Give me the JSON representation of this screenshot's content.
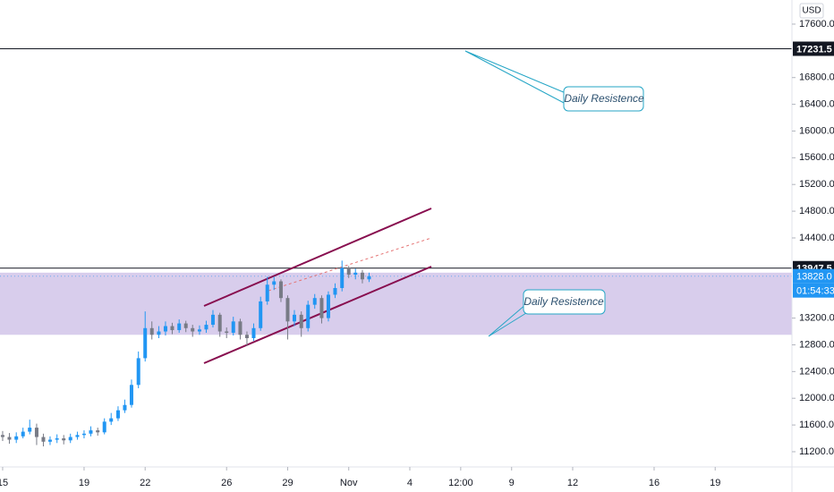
{
  "chart_data": {
    "type": "candlestick",
    "currency": "USD",
    "x": [
      0,
      0.33,
      0.67,
      1,
      1.33,
      1.67,
      2,
      2.33,
      2.67,
      3,
      3.33,
      3.67,
      4,
      4.33,
      4.67,
      5,
      5.33,
      5.67,
      6,
      6.33,
      6.67,
      7,
      7.33,
      7.67,
      8,
      8.33,
      8.67,
      9,
      9.33,
      9.67,
      10,
      10.33,
      10.67,
      11,
      11.33,
      11.67,
      12,
      12.33,
      12.67,
      13,
      13.33,
      13.67,
      14,
      14.33,
      14.67,
      15,
      15.33,
      15.67,
      16,
      16.33,
      16.67,
      17,
      17.33,
      17.67,
      18
    ],
    "open": [
      11450,
      11420,
      11380,
      11430,
      11500,
      11560,
      11420,
      11350,
      11380,
      11400,
      11370,
      11420,
      11450,
      11470,
      11520,
      11490,
      11650,
      11700,
      11820,
      11900,
      12200,
      12600,
      13050,
      12950,
      13000,
      13080,
      13020,
      13120,
      13050,
      13000,
      13030,
      13100,
      13250,
      13000,
      12980,
      13150,
      12950,
      12900,
      13050,
      13450,
      13700,
      13750,
      13500,
      13150,
      13250,
      13050,
      13400,
      13500,
      13200,
      13550,
      13650,
      13950,
      13850,
      13880,
      13780
    ],
    "high": [
      11510,
      11480,
      11490,
      11560,
      11680,
      11620,
      11470,
      11430,
      11460,
      11450,
      11470,
      11500,
      11520,
      11580,
      11560,
      11700,
      11780,
      11880,
      11980,
      12280,
      12700,
      13300,
      13150,
      13080,
      13150,
      13130,
      13180,
      13160,
      13100,
      13090,
      13160,
      13320,
      13280,
      13060,
      13220,
      13190,
      13000,
      13120,
      13520,
      13820,
      13820,
      13780,
      13540,
      13320,
      13300,
      13460,
      13560,
      13540,
      13600,
      13720,
      14060,
      13980,
      13940,
      13920,
      13880
    ],
    "low": [
      11360,
      11320,
      11330,
      11400,
      11460,
      11300,
      11280,
      11300,
      11330,
      11310,
      11330,
      11380,
      11400,
      11430,
      11440,
      11460,
      11600,
      11660,
      11780,
      11860,
      12150,
      12550,
      12880,
      12900,
      12940,
      12960,
      12980,
      12990,
      12920,
      12950,
      12980,
      13060,
      12920,
      12900,
      12940,
      12880,
      12780,
      12860,
      13010,
      13400,
      13620,
      13440,
      12880,
      13080,
      12920,
      13000,
      13340,
      13120,
      13150,
      13500,
      13600,
      13800,
      13780,
      13720,
      13740
    ],
    "close": [
      11420,
      11380,
      11430,
      11500,
      11560,
      11420,
      11350,
      11380,
      11400,
      11370,
      11420,
      11450,
      11470,
      11520,
      11490,
      11650,
      11700,
      11820,
      11900,
      12200,
      12600,
      13050,
      12950,
      13000,
      13080,
      13020,
      13120,
      13050,
      13000,
      13030,
      13100,
      13250,
      13000,
      12980,
      13150,
      12950,
      12900,
      13050,
      13450,
      13700,
      13750,
      13500,
      13150,
      13250,
      13050,
      13400,
      13500,
      13200,
      13550,
      13650,
      13950,
      13850,
      13880,
      13780,
      13828
    ],
    "up_color": "#2196f3",
    "down_color": "#787b86",
    "xlim": [
      -0.13,
      38.77
    ],
    "xticks": [
      {
        "value": 0,
        "label": "15"
      },
      {
        "value": 4,
        "label": "19"
      },
      {
        "value": 7,
        "label": "22"
      },
      {
        "value": 11,
        "label": "26"
      },
      {
        "value": 14,
        "label": "29"
      },
      {
        "value": 17,
        "label": "Nov"
      },
      {
        "value": 20,
        "label": "4"
      },
      {
        "value": 22.5,
        "label": "12:00"
      },
      {
        "value": 25,
        "label": "9"
      },
      {
        "value": 28,
        "label": "12"
      },
      {
        "value": 32,
        "label": "16"
      },
      {
        "value": 35,
        "label": "19"
      }
    ],
    "ylim": [
      10972,
      17961
    ],
    "yticks": [
      {
        "value": 11200,
        "label": "11200.0"
      },
      {
        "value": 11600,
        "label": "11600.0"
      },
      {
        "value": 12000,
        "label": "12000.0"
      },
      {
        "value": 12400,
        "label": "12400.0"
      },
      {
        "value": 12800,
        "label": "12800.0"
      },
      {
        "value": 13200,
        "label": "13200.0"
      },
      {
        "value": 14400,
        "label": "14400.0"
      },
      {
        "value": 14800,
        "label": "14800.0"
      },
      {
        "value": 15200,
        "label": "15200.0"
      },
      {
        "value": 15600,
        "label": "15600.0"
      },
      {
        "value": 16000,
        "label": "16000.0"
      },
      {
        "value": 16400,
        "label": "16400.0"
      },
      {
        "value": 16800,
        "label": "16800.0"
      },
      {
        "value": 17600,
        "label": "17600.0"
      }
    ],
    "horizontal_lines": [
      17231.5,
      13947.5
    ],
    "last_price": {
      "value": 13828,
      "label": "13828.0"
    },
    "countdown": "01:54:33",
    "zone": {
      "range": [
        12950,
        13880
      ],
      "color": "#d1c4e9"
    },
    "annotations": [
      "Daily Resistence",
      "Daily Resistence"
    ]
  }
}
